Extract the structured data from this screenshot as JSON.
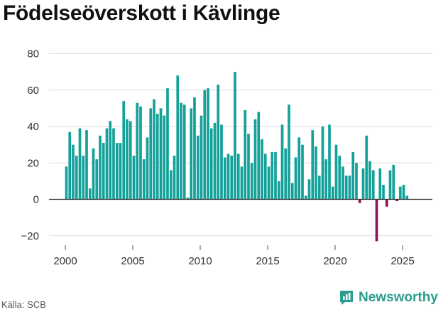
{
  "title": "Födelseöverskott i Kävlinge",
  "source": "Källa: SCB",
  "brand": "Newsworthy",
  "colors": {
    "positive": "#14a19a",
    "negative": "#8b1750",
    "grid": "#dddddd",
    "brand": "#2a9d8f"
  },
  "icons": {
    "brand_logo": "newsworthy-chart-icon"
  },
  "chart_data": {
    "type": "bar",
    "title": "Födelseöverskott i Kävlinge",
    "xlabel": "",
    "ylabel": "",
    "ylim": [
      -25,
      80
    ],
    "yticks": [
      -20,
      0,
      20,
      40,
      60,
      80
    ],
    "ytick_labels": [
      "−20",
      "0",
      "20",
      "40",
      "60",
      "80"
    ],
    "xlim": [
      1999.3,
      2027.3
    ],
    "xticks": [
      2000,
      2005,
      2010,
      2015,
      2020,
      2025
    ],
    "grid": true,
    "legend": "none",
    "frequency": "quarterly",
    "start": "2000-Q1",
    "series": [
      {
        "values": [
          18,
          37,
          30,
          24,
          39,
          24,
          38,
          6,
          28,
          22,
          35,
          31,
          39,
          43,
          39,
          31,
          31,
          54,
          44,
          43,
          24,
          53,
          51,
          22,
          34,
          50,
          55,
          47,
          50,
          46,
          61,
          16,
          24,
          68,
          53,
          52,
          1,
          50,
          56,
          35,
          46,
          60,
          61,
          39,
          42,
          63,
          41,
          23,
          25,
          24,
          70,
          25,
          18,
          49,
          36,
          20,
          44,
          48,
          33,
          25,
          18,
          26,
          26,
          10,
          41,
          28,
          52,
          9,
          23,
          34,
          30,
          2,
          11,
          38,
          29,
          13,
          40,
          22,
          41,
          7,
          30,
          24,
          18,
          13,
          13,
          26,
          20,
          -2,
          17,
          35,
          21,
          16,
          -23,
          17,
          8,
          -4,
          16,
          19,
          -1,
          7,
          8,
          2
        ]
      }
    ]
  }
}
